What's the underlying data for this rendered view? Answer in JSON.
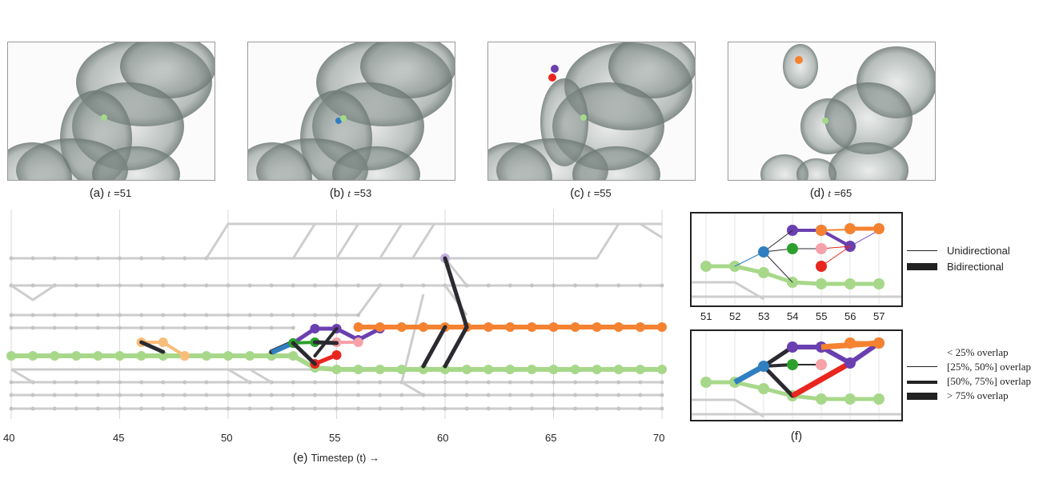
{
  "panels": [
    {
      "letter": "(a)",
      "t_symbol": "t",
      "t_value": "=51"
    },
    {
      "letter": "(b)",
      "t_symbol": "t",
      "t_value": "=53"
    },
    {
      "letter": "(c)",
      "t_symbol": "t",
      "t_value": "=55"
    },
    {
      "letter": "(d)",
      "t_symbol": "t",
      "t_value": "=65"
    }
  ],
  "chart_e": {
    "caption_letter": "(e)",
    "caption_text": "Timestep (t) →",
    "x_ticks": [
      "40",
      "45",
      "50",
      "55",
      "60",
      "65",
      "70"
    ]
  },
  "chart_f": {
    "caption_letter": "(f)",
    "x_ticks": [
      "51",
      "52",
      "53",
      "54",
      "55",
      "56",
      "57"
    ],
    "legend_top": [
      {
        "label": "Unidirectional",
        "weight": "thin"
      },
      {
        "label": "Bidirectional",
        "weight": "thick"
      }
    ],
    "legend_bottom": [
      {
        "label": "< 25% overlap"
      },
      {
        "label": "[25%, 50%] overlap"
      },
      {
        "label": "[50%, 75%] overlap"
      },
      {
        "label": "> 75% overlap"
      }
    ]
  },
  "colors": {
    "track_gray": "#cdcdcd",
    "green": "#a7d88a",
    "orange": "#f58231",
    "purple": "#6a40b0",
    "blue": "#2f7fc1",
    "dark_green": "#2ca02c",
    "red": "#e8261e",
    "pink": "#f7a1a8",
    "light_orange": "#f9bd7b",
    "lavender": "#c5b0e0",
    "link": "#2a2a30"
  }
}
